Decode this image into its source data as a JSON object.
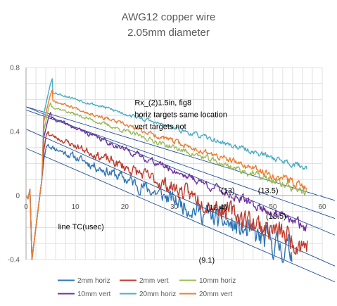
{
  "chart_data": {
    "type": "line",
    "title": [
      "AWG12 copper wire",
      "2.05mm diameter"
    ],
    "xlim": [
      0,
      60
    ],
    "ylim": [
      -0.4,
      0.8
    ],
    "x_ticks": [
      0,
      10,
      20,
      30,
      40,
      50,
      60
    ],
    "x_tick_labels": [
      "0",
      "10",
      "20",
      "30",
      "40",
      "50",
      "60"
    ],
    "y_ticks": [
      0.8,
      0.4,
      0,
      -0.4
    ],
    "y_tick_labels": [
      "0.8",
      "0.4",
      "0",
      "-0.4"
    ],
    "grid": {
      "vertical_every": 2,
      "horizontal_every": 0.1
    },
    "series": [
      {
        "name": "2mm horiz",
        "color": "#2E75B6",
        "x_start": 4,
        "x_end": 57,
        "start": 0.32,
        "slope": -0.0135,
        "noise": 0.012,
        "noise_growth": 0.0012,
        "peak_at": 4.5,
        "peak": 0.32,
        "truncate_below": -0.42,
        "seed": 11
      },
      {
        "name": "2mm vert",
        "color": "#C0392B",
        "x_start": 4,
        "x_end": 57,
        "start": 0.39,
        "slope": -0.0132,
        "noise": 0.01,
        "noise_growth": 0.0011,
        "peak_at": 4.5,
        "peak": 0.4,
        "truncate_below": -0.42,
        "seed": 23
      },
      {
        "name": "10mm horiz",
        "color": "#9BBB59",
        "x_start": 4,
        "x_end": 57,
        "start": 0.57,
        "slope": -0.0104,
        "noise": 0.006,
        "noise_growth": 0.0003,
        "peak_at": 5,
        "peak": 0.58,
        "truncate_below": -0.42,
        "seed": 37
      },
      {
        "name": "10mm vert",
        "color": "#7030A0",
        "x_start": 4,
        "x_end": 57,
        "start": 0.5,
        "slope": -0.0132,
        "noise": 0.008,
        "noise_growth": 0.0004,
        "peak_at": 5,
        "peak": 0.52,
        "truncate_below": -0.42,
        "seed": 41
      },
      {
        "name": "20mm horiz",
        "color": "#4BACC6",
        "x_start": 4,
        "x_end": 57,
        "start": 0.66,
        "slope": -0.0092,
        "noise": 0.006,
        "noise_growth": 0.0002,
        "peak_at": 5.3,
        "peak": 0.73,
        "truncate_below": -0.42,
        "seed": 53
      },
      {
        "name": "20mm vert",
        "color": "#ED7D31",
        "x_start": 4,
        "x_end": 57,
        "start": 0.61,
        "slope": -0.0105,
        "noise": 0.006,
        "noise_growth": 0.0003,
        "peak_at": 5.3,
        "peak": 0.66,
        "truncate_below": -0.42,
        "seed": 67
      }
    ],
    "tc_lines": [
      {
        "x0": 0,
        "y0": 0.555,
        "x1": 60,
        "y1": -0.006
      },
      {
        "x0": 0,
        "y0": 0.535,
        "x1": 60,
        "y1": -0.115
      },
      {
        "x0": 0,
        "y0": 0.555,
        "x1": 60,
        "y1": -0.214
      },
      {
        "x0": 0,
        "y0": 0.415,
        "x1": 60,
        "y1": -0.405
      },
      {
        "x0": 0,
        "y0": 0.295,
        "x1": 60,
        "y1": -0.505
      }
    ],
    "annotations": [
      {
        "lines": [
          "Rx_(2)1.5in, fig8",
          "horiz targets same location",
          "vert targets not"
        ],
        "x": 22,
        "y": 0.565
      },
      {
        "lines": [
          "(13)"
        ],
        "x": 39.5,
        "y": 0.015
      },
      {
        "lines": [
          "(13.5)"
        ],
        "x": 47,
        "y": 0.015
      },
      {
        "lines": [
          "(12.4)"
        ],
        "x": 36.6,
        "y": -0.09
      },
      {
        "lines": [
          "(13.5)"
        ],
        "x": 48.6,
        "y": -0.144
      },
      {
        "lines": [
          "line TC(usec)"
        ],
        "x": 6.5,
        "y": -0.21
      },
      {
        "lines": [
          "(9.1)"
        ],
        "x": 35,
        "y": -0.42
      }
    ],
    "legend": {
      "position": "bottom",
      "entries": [
        "2mm horiz",
        "2mm vert",
        "10mm horiz",
        "10mm vert",
        "20mm horiz",
        "20mm vert"
      ]
    }
  }
}
